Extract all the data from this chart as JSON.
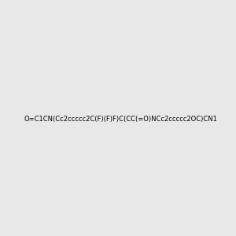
{
  "smiles": "O=C1CN(Cc2ccccc2C(F)(F)F)C(CC(=O)NCc2ccccc2OC)CN1",
  "background_color": "#e8e8e8",
  "figure_size": [
    3.0,
    3.0
  ],
  "dpi": 100
}
